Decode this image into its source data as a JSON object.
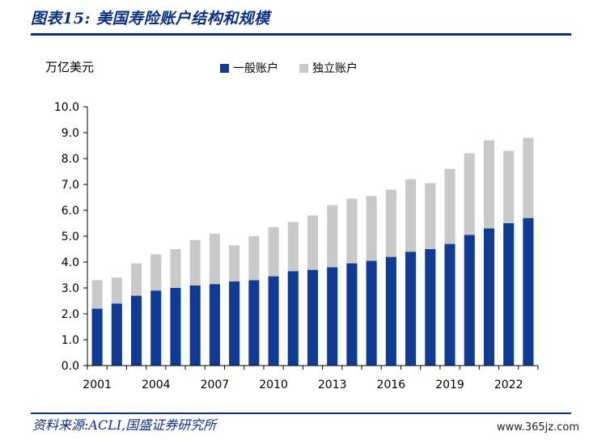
{
  "header": {
    "figure_no": "图表15:",
    "title": "美国寿险账户结构和规模"
  },
  "colors": {
    "accent": "#0b2e8a",
    "general_account": "#0f3b96",
    "separate_account": "#c9c9c9"
  },
  "source": "资料来源:ACLI,国盛证券研究所",
  "watermark": "www.365jz.com",
  "chart_data": {
    "type": "bar",
    "stacked": true,
    "unit": "万亿美元",
    "x": [
      2001,
      2002,
      2003,
      2004,
      2005,
      2006,
      2007,
      2008,
      2009,
      2010,
      2011,
      2012,
      2013,
      2014,
      2015,
      2016,
      2017,
      2018,
      2019,
      2020,
      2021,
      2022,
      2023
    ],
    "x_tick_labels": [
      "2001",
      "2004",
      "2007",
      "2010",
      "2013",
      "2016",
      "2019",
      "2022"
    ],
    "ylim": [
      0,
      10
    ],
    "y_ticks": [
      "0.0",
      "1.0",
      "2.0",
      "3.0",
      "4.0",
      "5.0",
      "6.0",
      "7.0",
      "8.0",
      "9.0",
      "10.0"
    ],
    "series": [
      {
        "name": "一般账户",
        "values": [
          2.2,
          2.4,
          2.7,
          2.9,
          3.0,
          3.1,
          3.15,
          3.25,
          3.3,
          3.45,
          3.65,
          3.7,
          3.8,
          3.95,
          4.05,
          4.2,
          4.4,
          4.5,
          4.7,
          5.05,
          5.3,
          5.5,
          5.7
        ]
      },
      {
        "name": "独立账户",
        "values": [
          1.1,
          1.0,
          1.25,
          1.4,
          1.5,
          1.75,
          1.95,
          1.4,
          1.7,
          1.9,
          1.9,
          2.1,
          2.4,
          2.5,
          2.5,
          2.6,
          2.8,
          2.55,
          2.9,
          3.15,
          3.4,
          2.8,
          3.1
        ]
      }
    ],
    "legend_position": "top",
    "grid": false
  }
}
